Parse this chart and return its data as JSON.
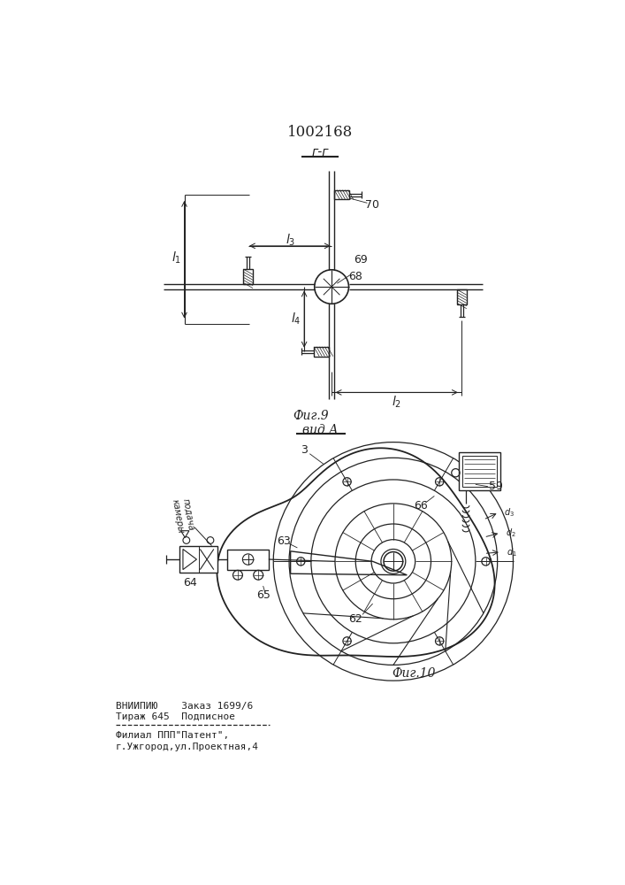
{
  "patent_number": "1002168",
  "fig9_label": "Фиг.9",
  "fig9_section": "г-г",
  "fig10_label": "Фиг.10",
  "view_label": "вид А",
  "bottom_text_line1": "ВНИИПИЮ    Заказ 1699/6",
  "bottom_text_line2": "Тираж 645  Подписное",
  "bottom_text_line3": "Филиал ППП\"Патент\",",
  "bottom_text_line4": "г.Ужгород,ул.Проектная,4",
  "подача_камеры": "подача камеры",
  "bg_color": "#ffffff",
  "line_color": "#222222",
  "label_68": "68",
  "label_69": "69",
  "label_70": "70",
  "label_3": "3",
  "label_59": "59",
  "label_62": "62",
  "label_63": "63",
  "label_64": "64",
  "label_65": "65",
  "label_66": "66"
}
